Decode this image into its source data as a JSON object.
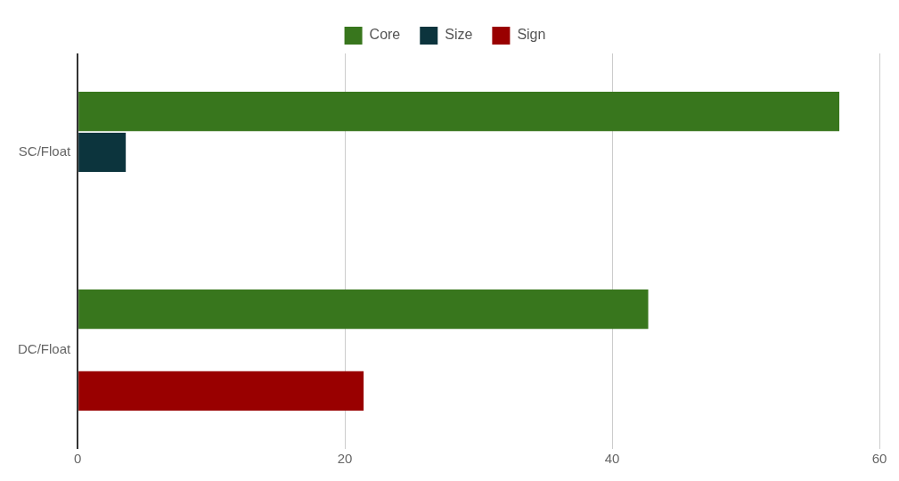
{
  "chart_data": {
    "type": "bar",
    "orientation": "horizontal",
    "categories": [
      "SC/Float",
      "DC/Float"
    ],
    "series": [
      {
        "name": "Core",
        "color": "#38761d",
        "values": [
          57,
          42.7
        ]
      },
      {
        "name": "Size",
        "color": "#0c343d",
        "values": [
          3.6,
          0
        ]
      },
      {
        "name": "Sign",
        "color": "#990000",
        "values": [
          0,
          21.4
        ]
      }
    ],
    "xlim": [
      0,
      60
    ],
    "xticks": [
      0,
      20,
      40,
      60
    ],
    "grid": "x",
    "legend": "top"
  }
}
